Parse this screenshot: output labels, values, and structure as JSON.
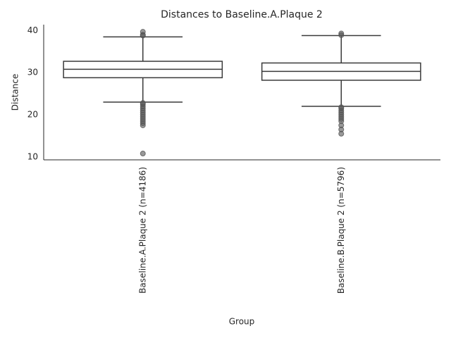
{
  "chart_data": {
    "type": "box",
    "title": "Distances to Baseline.A.Plaque 2",
    "x_label": "Group",
    "y_label": "Distance",
    "categories": [
      "Baseline.A.Plaque 2 (n=4186)",
      "Baseline.B.Plaque 2 (n=5796)"
    ],
    "boxes": [
      {
        "whislo": 23.0,
        "q1": 28.8,
        "med": 30.8,
        "q3": 32.7,
        "whishi": 38.5,
        "fliers": [
          39.7,
          39.0,
          38.8,
          22.8,
          22.5,
          22.0,
          21.5,
          21.0,
          20.5,
          20.0,
          19.5,
          19.0,
          18.5,
          18.0,
          17.5,
          10.8
        ]
      },
      {
        "whislo": 22.0,
        "q1": 28.2,
        "med": 30.3,
        "q3": 32.3,
        "whishi": 38.8,
        "fliers": [
          39.3,
          38.9,
          21.8,
          21.5,
          21.0,
          20.5,
          20.0,
          19.5,
          19.0,
          18.5,
          17.5,
          16.5,
          15.5
        ]
      }
    ],
    "box_color": "#ffffff",
    "line_color": "#3a3a3a",
    "flier_color": "#555555",
    "ylim": [
      9.3,
      41.4
    ],
    "yticks": [
      10,
      20,
      30,
      40
    ],
    "grid": false
  }
}
